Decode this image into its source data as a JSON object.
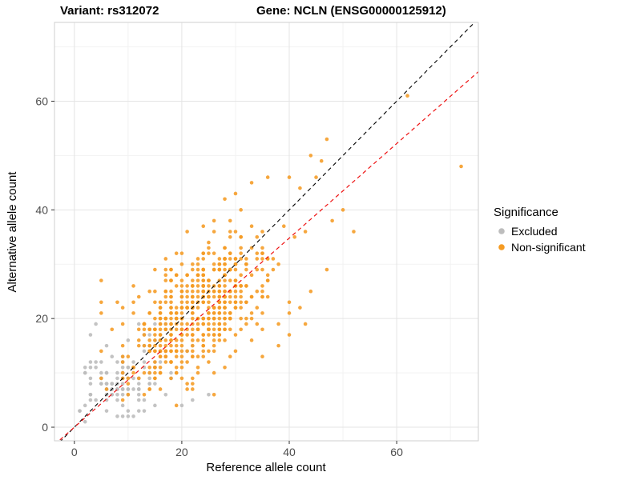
{
  "title": {
    "variant": "Variant: rs312072",
    "gene": "Gene: NCLN (ENSG00000125912)"
  },
  "chart_data": {
    "type": "scatter",
    "xlabel": "Reference allele count",
    "ylabel": "Alternative allele count",
    "xlim": [
      -3.7,
      75.2
    ],
    "ylim": [
      -2.5,
      74.5
    ],
    "xticks": [
      0,
      20,
      40,
      60
    ],
    "yticks": [
      0,
      20,
      40,
      60
    ],
    "minor_x": [
      10,
      30,
      50,
      70
    ],
    "minor_y": [
      10,
      30,
      50,
      70
    ],
    "grid": true,
    "panel": {
      "background": "#ffffff",
      "border_color": "#cfcfcf",
      "major_grid_color": "#e4e4e4",
      "minor_grid_color": "#f2f2f2",
      "tick_color": "#333333",
      "tick_label_color": "#4d4d4d"
    },
    "legend": {
      "title": "Significance",
      "position": "right",
      "entries": [
        {
          "label": "Excluded",
          "color": "#bdbdbd"
        },
        {
          "label": "Non-significant",
          "color": "#f59b23"
        }
      ]
    },
    "lines": [
      {
        "name": "identity",
        "slope": 1.0,
        "intercept": 0,
        "color": "#000000",
        "dash": "5 4",
        "width": 1.1
      },
      {
        "name": "fitted",
        "slope": 0.87,
        "intercept": 0,
        "color": "#ee1111",
        "dash": "5 4",
        "width": 1.2
      }
    ],
    "series": [
      {
        "name": "Excluded",
        "color": "#bdbdbd",
        "opacity": 0.9,
        "point_radius": 2.3,
        "cloud": {
          "note": "dense cloud of integer allele counts, approximated by a correlated bivariate normal",
          "seed": 7,
          "count": 120,
          "center": [
            9.5,
            9.0
          ],
          "sd": [
            4.2,
            4.2
          ],
          "corr": 0.45,
          "clip_x": [
            1,
            26
          ],
          "clip_y": [
            1,
            19
          ]
        },
        "points": [
          [
            3,
            17
          ],
          [
            4,
            19
          ],
          [
            2,
            10
          ],
          [
            3,
            6
          ],
          [
            25,
            6
          ],
          [
            22,
            5
          ],
          [
            20,
            4
          ],
          [
            6,
            15
          ],
          [
            5,
            12
          ],
          [
            12,
            3
          ],
          [
            15,
            4
          ],
          [
            9,
            2
          ]
        ]
      },
      {
        "name": "Non-significant",
        "color": "#f59b23",
        "opacity": 0.88,
        "point_radius": 2.3,
        "cloud": {
          "note": "dense cloud of integer allele counts, approximated by a correlated bivariate normal",
          "seed": 13,
          "count": 540,
          "center": [
            22,
            21
          ],
          "sd": [
            7.2,
            6.8
          ],
          "corr": 0.55,
          "clip_x": [
            5,
            58
          ],
          "clip_y": [
            4,
            50
          ]
        },
        "points": [
          [
            62,
            61
          ],
          [
            72,
            48
          ],
          [
            47,
            53
          ],
          [
            46,
            49
          ],
          [
            44,
            50
          ],
          [
            45,
            46
          ],
          [
            40,
            46
          ],
          [
            42,
            44
          ],
          [
            36,
            46
          ],
          [
            33,
            45
          ],
          [
            30,
            43
          ],
          [
            28,
            42
          ],
          [
            50,
            40
          ],
          [
            48,
            38
          ],
          [
            52,
            36
          ],
          [
            43,
            36
          ],
          [
            47,
            29
          ],
          [
            44,
            25
          ],
          [
            43,
            19
          ],
          [
            40,
            17
          ],
          [
            38,
            15
          ],
          [
            35,
            13
          ],
          [
            26,
            38
          ],
          [
            24,
            37
          ],
          [
            31,
            40
          ]
        ]
      }
    ]
  }
}
